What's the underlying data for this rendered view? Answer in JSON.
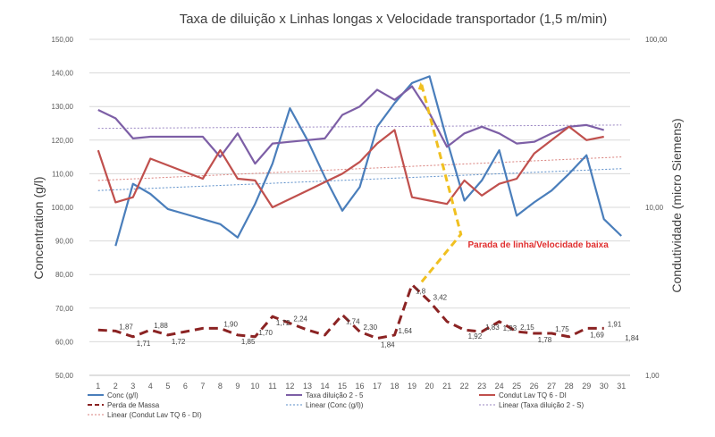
{
  "chart_data": {
    "type": "line",
    "title": "Taxa de diluição x Linhas longas x Velocidade transportador (1,5 m/min)",
    "ylabel": "Concentration  (g/l)",
    "y2label": "Condutividade  (micro Siemens)",
    "ylim": [
      50,
      150
    ],
    "y2lim": [
      1,
      100
    ],
    "y2scale": "log",
    "grid": true,
    "legend_position": "bottom",
    "y_ticks": [
      "50,00",
      "60,00",
      "70,00",
      "80,00",
      "90,00",
      "100,00",
      "110,00",
      "120,00",
      "130,00",
      "140,00",
      "150,00"
    ],
    "y2_ticks": [
      "1,00",
      "10,00",
      "100,00"
    ],
    "x": [
      1,
      2,
      3,
      4,
      5,
      6,
      7,
      8,
      9,
      10,
      11,
      12,
      13,
      14,
      15,
      16,
      17,
      18,
      19,
      20,
      21,
      22,
      23,
      24,
      25,
      26,
      27,
      28,
      29,
      30,
      31
    ],
    "series": [
      {
        "name": "Conc (g/l)",
        "color": "#4a7ebb",
        "axis": "left",
        "values": [
          null,
          88.5,
          107,
          104,
          99.5,
          98,
          96.5,
          95,
          91,
          101,
          113,
          129.5,
          120,
          109,
          99,
          106,
          124,
          131,
          137,
          139,
          120,
          102,
          108,
          117,
          97.5,
          101.5,
          105,
          110,
          115.5,
          96.5,
          91.5
        ]
      },
      {
        "name": "Taxa diluição 2 - 5",
        "color": "#7d5fa6",
        "axis": "left",
        "values": [
          129,
          126.5,
          120.5,
          121,
          121,
          121,
          121,
          115,
          122,
          113,
          119,
          119.5,
          120,
          120.5,
          127.5,
          130,
          135,
          132,
          136,
          128,
          118,
          122,
          124,
          122,
          119,
          119.5,
          122,
          124,
          124.5,
          123,
          null
        ]
      },
      {
        "name": "Condut Lav TQ 6 - DI",
        "color": "#c0504d",
        "axis": "left",
        "values": [
          117,
          101.5,
          103,
          114.5,
          112.5,
          110.5,
          108.5,
          117,
          108.5,
          108,
          100,
          102.5,
          105,
          107.5,
          110,
          113.5,
          119,
          123,
          103,
          102,
          101,
          108,
          103.5,
          107,
          108.5,
          116,
          120,
          124,
          120,
          121,
          null
        ]
      },
      {
        "name": "Perda de Massa",
        "color": "#8b2323",
        "axis": "left",
        "dashed": true,
        "values": [
          63.5,
          63.2,
          61.5,
          63.5,
          62,
          63,
          64,
          64,
          62,
          61.5,
          67.5,
          65.5,
          63.5,
          62,
          68,
          63,
          61,
          62,
          77,
          72,
          66,
          63.5,
          63,
          66,
          63,
          62.5,
          62.5,
          61.5,
          64,
          64,
          null
        ]
      }
    ],
    "trendlines": [
      {
        "name": "Linear (Conc (g/l))",
        "color": "#5b8ec9",
        "start": 105,
        "end": 111.5
      },
      {
        "name": "Linear (Taxa diluição 2 - S)",
        "color": "#9a86c2",
        "start": 123.5,
        "end": 124.5
      },
      {
        "name": "Linear (Condut Lav TQ 6 - DI)",
        "color": "#d9807c",
        "start": 108,
        "end": 115
      }
    ],
    "data_labels": [
      {
        "x": 2,
        "text": "1,87"
      },
      {
        "x": 3,
        "text": "1,71"
      },
      {
        "x": 4,
        "text": "1,88"
      },
      {
        "x": 5,
        "text": "1,72"
      },
      {
        "x": 8,
        "text": "1,90"
      },
      {
        "x": 9,
        "text": "1,85"
      },
      {
        "x": 10,
        "text": "1,70"
      },
      {
        "x": 11,
        "text": "1,72"
      },
      {
        "x": 12,
        "text": "2,24"
      },
      {
        "x": 15,
        "text": "1,74"
      },
      {
        "x": 16,
        "text": "2,30"
      },
      {
        "x": 17,
        "text": "1,84"
      },
      {
        "x": 18,
        "text": "1,64"
      },
      {
        "x": 19,
        "text": "1,8"
      },
      {
        "x": 20,
        "text": "3,42"
      },
      {
        "x": 22,
        "text": "1,92"
      },
      {
        "x": 23,
        "text": "1,83"
      },
      {
        "x": 24,
        "text": "1,93"
      },
      {
        "x": 25,
        "text": "2,15"
      },
      {
        "x": 26,
        "text": "1,78"
      },
      {
        "x": 27,
        "text": "1,75"
      },
      {
        "x": 29,
        "text": "1,69"
      },
      {
        "x": 30,
        "text": "1,91"
      },
      {
        "x": 31,
        "text": "1,84"
      }
    ],
    "annotation": {
      "text": "Parada de linha/Velocidade baixa",
      "color": "#e03030",
      "arrow_color": "#f0c020"
    },
    "legend": [
      {
        "label": "Conc (g/l)",
        "color": "#4a7ebb",
        "style": "solid"
      },
      {
        "label": "Taxa diluição 2 - 5",
        "color": "#7d5fa6",
        "style": "solid"
      },
      {
        "label": "Condut Lav TQ 6 - DI",
        "color": "#c0504d",
        "style": "solid"
      },
      {
        "label": "Perda de Massa",
        "color": "#8b2323",
        "style": "dashed"
      },
      {
        "label": "Linear (Conc (g/l))",
        "color": "#5b8ec9",
        "style": "dotted"
      },
      {
        "label": "Linear (Taxa diluição 2 - S)",
        "color": "#9a86c2",
        "style": "dotted"
      },
      {
        "label": "Linear (Condut Lav TQ 6 - DI)",
        "color": "#d9807c",
        "style": "dotted"
      }
    ]
  }
}
